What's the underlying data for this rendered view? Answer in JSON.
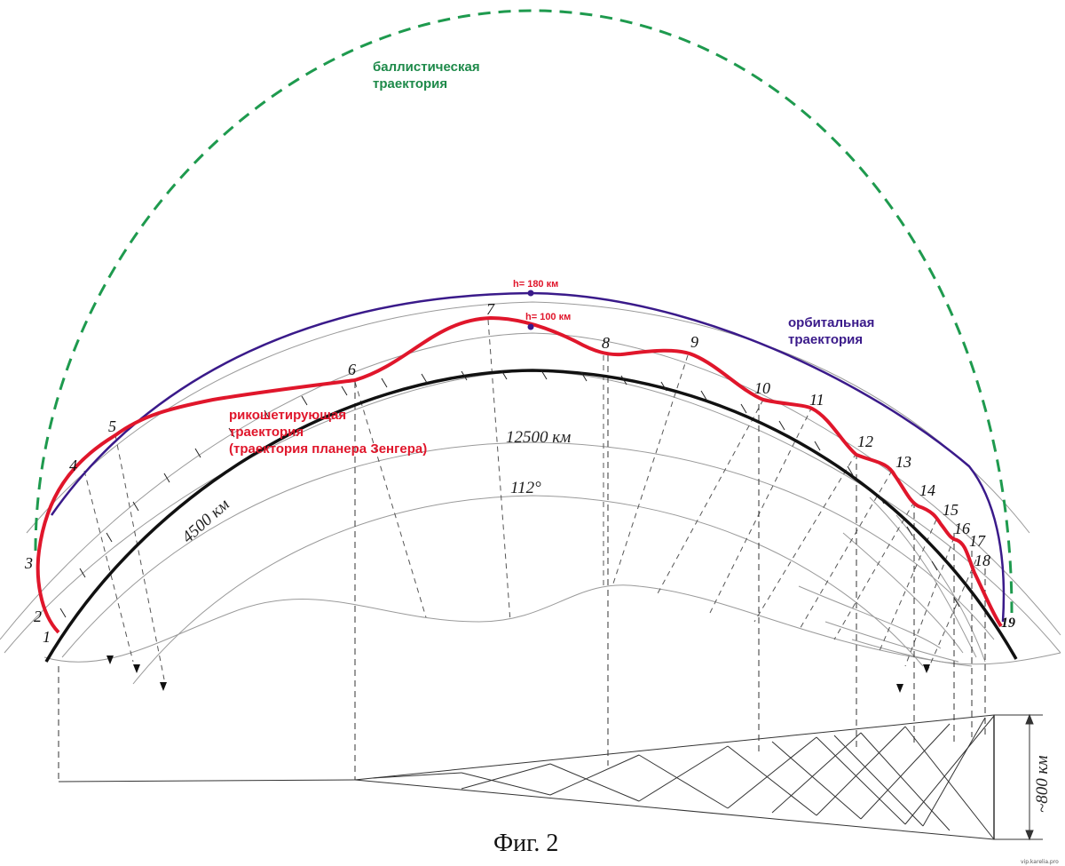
{
  "labels": {
    "ballistic": [
      "баллистическая",
      "траектория"
    ],
    "ricochet": [
      "рикошетирующая",
      "траектория",
      "(траектория планера Зенгера)"
    ],
    "orbital": [
      "орбитальная",
      "траектория"
    ],
    "h180": "h= 180 км",
    "h100": "h= 100 км",
    "dist_4500": "4500 км",
    "dist_12500": "12500 км",
    "angle_112": "112°",
    "dist_800": "~800 км",
    "caption": "Фиг. 2",
    "credit": "vip.karelia.pro"
  },
  "points": [
    "1",
    "2",
    "3",
    "4",
    "5",
    "6",
    "7",
    "8",
    "9",
    "10",
    "11",
    "12",
    "13",
    "14",
    "15",
    "16",
    "17",
    "18",
    "19"
  ],
  "colors": {
    "ballistic": "#1e9a4e",
    "ricochet": "#e0162b",
    "orbital": "#3a1a8a",
    "earth": "#111111",
    "grid": "#8a8a8a"
  }
}
